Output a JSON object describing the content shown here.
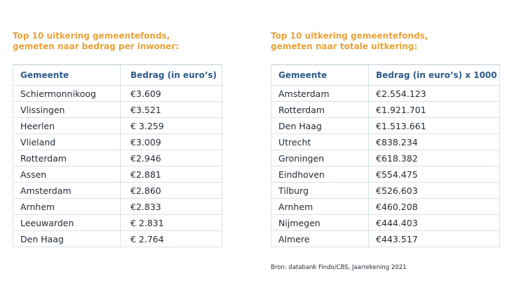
{
  "left_table": {
    "title_line1": "Top 10 uitkering gemeentefonds,",
    "title_line2": "gemeten naar bedrag per inwoner:",
    "headers": [
      "Gemeente",
      "Bedrag (in euro’s)"
    ],
    "rows": [
      [
        "Schiermonnikoog",
        "€3.609"
      ],
      [
        "Vlissingen",
        "€3.521"
      ],
      [
        "Heerlen",
        "€ 3.259"
      ],
      [
        "Vlieland",
        "€3.009"
      ],
      [
        "Rotterdam",
        "€2.946"
      ],
      [
        "Assen",
        "€2.881"
      ],
      [
        "Amsterdam",
        "€2.860"
      ],
      [
        "Arnhem",
        "€2.833"
      ],
      [
        "Leeuwarden",
        "€ 2.831"
      ],
      [
        "Den Haag",
        "€ 2.764"
      ]
    ]
  },
  "right_table": {
    "title_line1": "Top 10 uitkering gemeentefonds,",
    "title_line2": "gemeten naar totale uitkering:",
    "headers": [
      "Gemeente",
      "Bedrag (in euro’s) x 1000"
    ],
    "rows": [
      [
        "Amsterdam",
        "€2.554.123"
      ],
      [
        "Rotterdam",
        "€1.921.701"
      ],
      [
        "Den Haag",
        "€1.513.661"
      ],
      [
        "Utrecht",
        "€838.234"
      ],
      [
        "Groningen",
        "€618.382"
      ],
      [
        "Eindhoven",
        "€554.475"
      ],
      [
        "Tilburg",
        "€526.603"
      ],
      [
        "Arnhem",
        "€460.208"
      ],
      [
        "Nijmegen",
        "€444.403"
      ],
      [
        "Almere",
        "€443.517"
      ]
    ]
  },
  "source": "Bron: databank Findo/CBS, Jaarrekening 2021",
  "colors": {
    "title": "#e8a33a",
    "header": "#2e5b8a",
    "border": "#d7e3ea",
    "text": "#1f2a36"
  }
}
